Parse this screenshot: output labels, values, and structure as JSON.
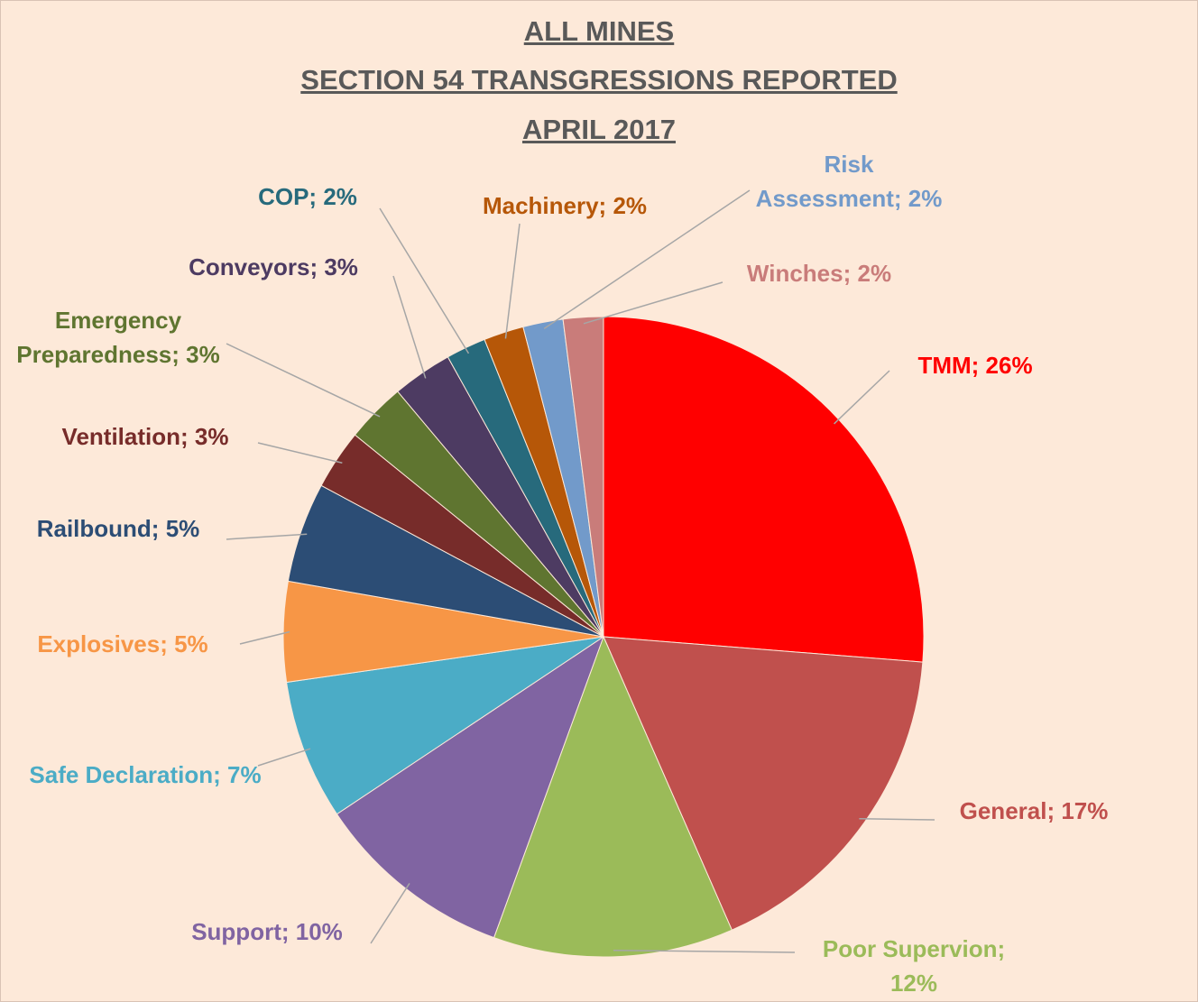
{
  "chart_data": {
    "type": "pie",
    "title": [
      "ALL MINES",
      "SECTION 54 TRANSGRESSIONS REPORTED",
      "APRIL 2017"
    ],
    "categories": [
      "TMM",
      "General",
      "Poor Supervion",
      "Support",
      "Safe Declaration",
      "Explosives",
      "Railbound",
      "Ventilation",
      "Emergency Preparedness",
      "Conveyors",
      "COP",
      "Machinery",
      "Risk Assessment",
      "Winches"
    ],
    "values": [
      26,
      17,
      12,
      10,
      7,
      5,
      5,
      3,
      3,
      3,
      2,
      2,
      2,
      2
    ],
    "value_labels": [
      "TMM; 26%",
      "General; 17%",
      "Poor Supervion; 12%",
      "Support; 10%",
      "Safe Declaration; 7%",
      "Explosives; 5%",
      "Railbound; 5%",
      "Ventilation; 3%",
      "Emergency Preparedness; 3%",
      "Conveyors; 3%",
      "COP; 2%",
      "Machinery; 2%",
      "Risk Assessment; 2%",
      "Winches; 2%"
    ],
    "colors": [
      "#ff0000",
      "#c0504d",
      "#9bbb59",
      "#8064a2",
      "#4bacc6",
      "#f79646",
      "#2c4d75",
      "#772c2a",
      "#5f7530",
      "#4d3b62",
      "#276a7c",
      "#b65708",
      "#729aca",
      "#c97c7a"
    ]
  }
}
